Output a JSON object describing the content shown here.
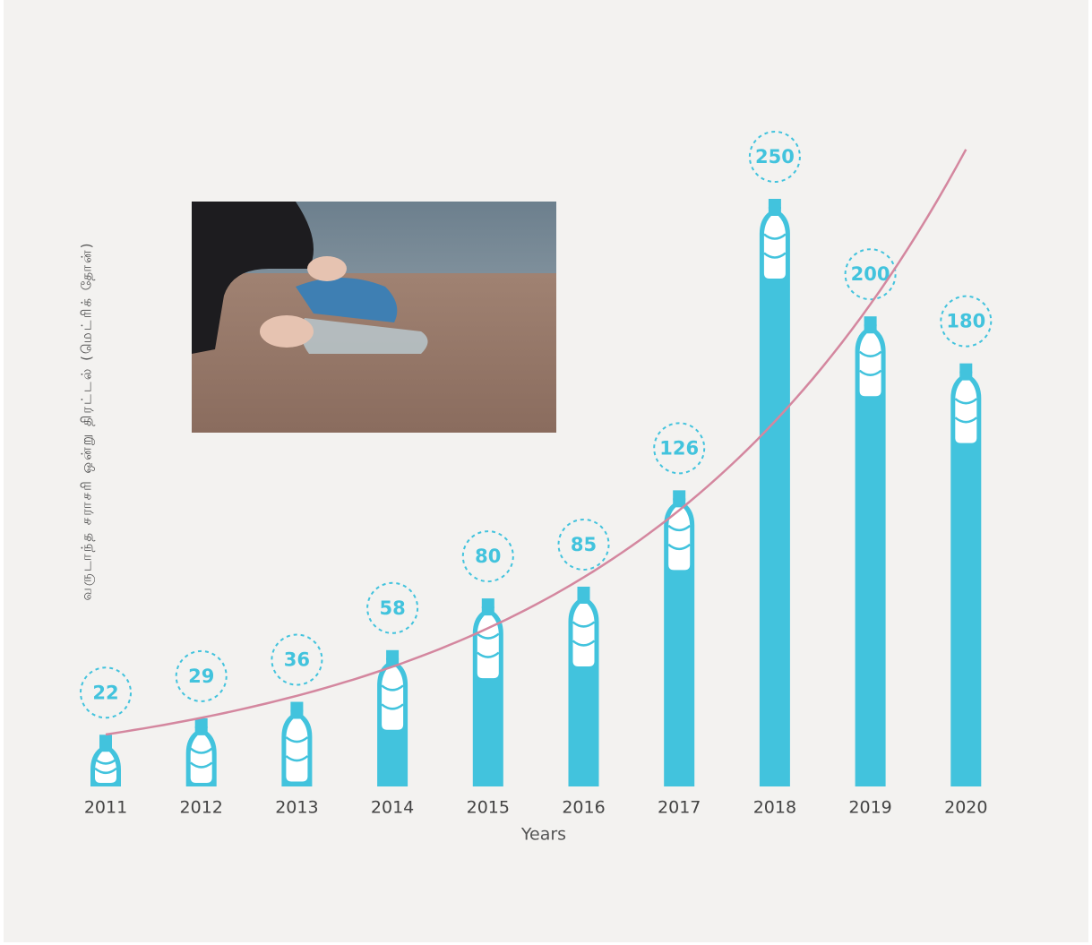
{
  "chart_data": {
    "type": "bar",
    "categories": [
      "2011",
      "2012",
      "2013",
      "2014",
      "2015",
      "2016",
      "2017",
      "2018",
      "2019",
      "2020"
    ],
    "values": [
      22,
      29,
      36,
      58,
      80,
      85,
      126,
      250,
      200,
      180
    ],
    "color": "#42c3dd",
    "x_label": "Years",
    "y_label": "வருடாந்த சராசரி ஒன்று திரட்டல் (மெட்ரிக் தோன்)",
    "trend_color": "#d4879f"
  }
}
